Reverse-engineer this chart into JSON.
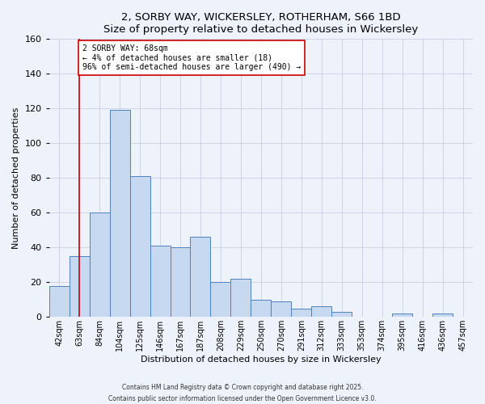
{
  "title_line1": "2, SORBY WAY, WICKERSLEY, ROTHERHAM, S66 1BD",
  "title_line2": "Size of property relative to detached houses in Wickersley",
  "xlabel": "Distribution of detached houses by size in Wickersley",
  "ylabel": "Number of detached properties",
  "bar_labels": [
    "42sqm",
    "63sqm",
    "84sqm",
    "104sqm",
    "125sqm",
    "146sqm",
    "167sqm",
    "187sqm",
    "208sqm",
    "229sqm",
    "250sqm",
    "270sqm",
    "291sqm",
    "312sqm",
    "333sqm",
    "353sqm",
    "374sqm",
    "395sqm",
    "416sqm",
    "436sqm",
    "457sqm"
  ],
  "bar_values": [
    18,
    35,
    60,
    119,
    81,
    41,
    40,
    46,
    20,
    22,
    10,
    9,
    5,
    6,
    3,
    0,
    0,
    2,
    0,
    2,
    0
  ],
  "bar_color": "#c6d9f1",
  "bar_edge_color": "#4f81bd",
  "annotation_text": "2 SORBY WAY: 68sqm\n← 4% of detached houses are smaller (18)\n96% of semi-detached houses are larger (490) →",
  "vline_x_index": 1,
  "vline_color": "#cc0000",
  "ylim": [
    0,
    160
  ],
  "yticks": [
    0,
    20,
    40,
    60,
    80,
    100,
    120,
    140,
    160
  ],
  "annotation_box_color": "#ffffff",
  "annotation_box_edge": "#cc0000",
  "footer_line1": "Contains HM Land Registry data © Crown copyright and database right 2025.",
  "footer_line2": "Contains public sector information licensed under the Open Government Licence v3.0.",
  "bg_color": "#eef2fb",
  "grid_color": "#c8d0e0",
  "title_fontsize": 9.5,
  "xlabel_fontsize": 8,
  "ylabel_fontsize": 8,
  "tick_fontsize": 7,
  "annotation_fontsize": 7,
  "footer_fontsize": 5.5
}
